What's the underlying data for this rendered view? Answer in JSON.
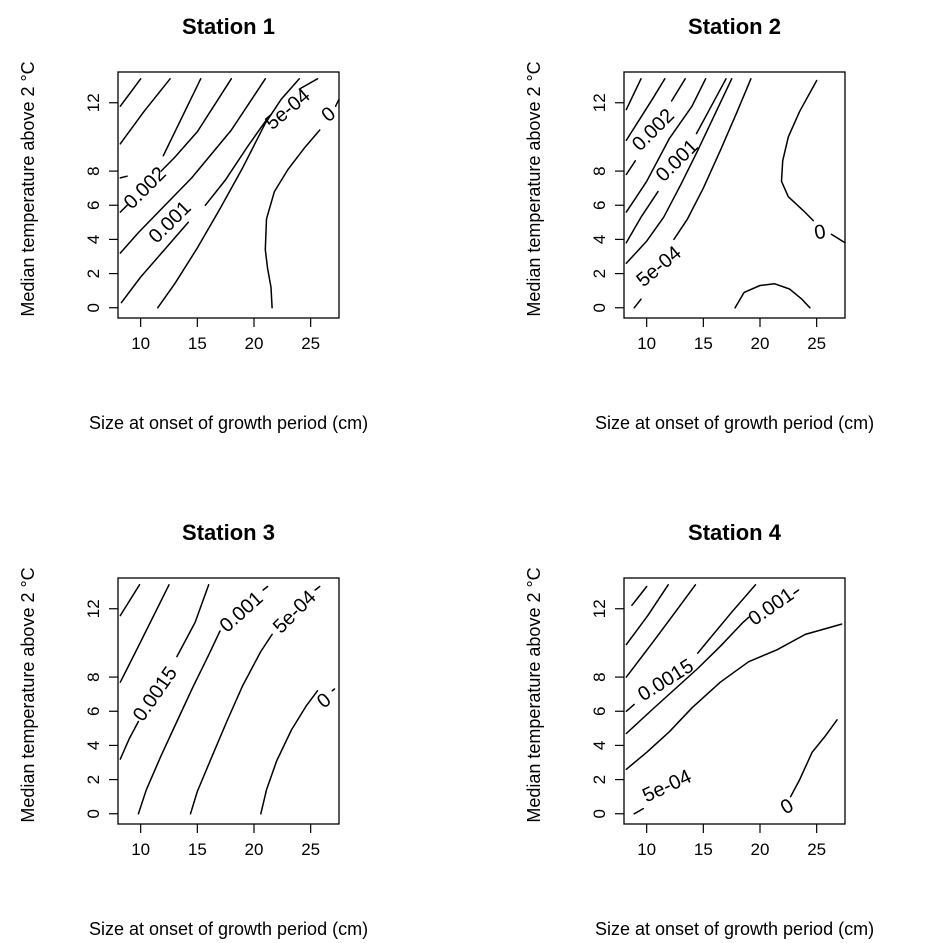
{
  "chart_data": [
    {
      "type": "contour",
      "title": "Station 1",
      "xlabel": "Size at onset of growth period (cm)",
      "ylabel": "Median temperature above 2 °C",
      "xlim": [
        8,
        27.5
      ],
      "ylim": [
        -0.6,
        13.8
      ],
      "xticks": [
        10,
        15,
        20,
        25
      ],
      "yticks": [
        0,
        2,
        4,
        6,
        8,
        12
      ],
      "grid": false,
      "contours": [
        {
          "points": [
            [
              8.2,
              11.8
            ],
            [
              10.0,
              13.4
            ]
          ]
        },
        {
          "points": [
            [
              8.2,
              9.6
            ],
            [
              10.3,
              11.5
            ],
            [
              12.6,
              13.4
            ]
          ]
        },
        {
          "points": [
            [
              8.2,
              7.6
            ],
            [
              8.8,
              7.7
            ]
          ]
        },
        {
          "points": [
            [
              12.0,
              8.9
            ],
            [
              15.3,
              13.4
            ]
          ]
        },
        {
          "label": "0.002",
          "label_at": [
            10.4,
            7.0
          ],
          "label_angle": -45,
          "points": [
            [
              8.2,
              5.6
            ],
            [
              8.8,
              6.0
            ]
          ]
        },
        {
          "points": [
            [
              11.8,
              8.0
            ],
            [
              13.0,
              8.8
            ],
            [
              15.0,
              10.3
            ],
            [
              18.0,
              13.4
            ]
          ]
        },
        {
          "points": [
            [
              8.2,
              3.2
            ],
            [
              9.8,
              4.4
            ],
            [
              12.0,
              5.9
            ],
            [
              14.5,
              7.6
            ],
            [
              18.0,
              10.4
            ],
            [
              21.0,
              13.4
            ]
          ]
        },
        {
          "label": "0.001",
          "label_at": [
            12.6,
            5.0
          ],
          "label_angle": -45
        },
        {
          "points": [
            [
              8.3,
              0.3
            ],
            [
              10.0,
              1.8
            ],
            [
              12.5,
              3.7
            ],
            [
              14.2,
              5.0
            ]
          ]
        },
        {
          "points": [
            [
              15.7,
              6.0
            ],
            [
              17.5,
              7.5
            ],
            [
              19.5,
              9.5
            ],
            [
              21.1,
              11.0
            ]
          ]
        },
        {
          "label": "5e-04",
          "label_at": [
            23.0,
            11.6
          ],
          "label_angle": -40
        },
        {
          "points": [
            [
              24.0,
              12.8
            ],
            [
              25.6,
              13.4
            ]
          ]
        },
        {
          "points": [
            [
              11.5,
              0.0
            ],
            [
              13.0,
              1.4
            ],
            [
              15.0,
              3.5
            ],
            [
              17.0,
              5.8
            ],
            [
              19.0,
              8.2
            ],
            [
              21.0,
              10.8
            ],
            [
              22.4,
              12.2
            ],
            [
              24.0,
              13.4
            ]
          ]
        },
        {
          "points": [
            [
              21.6,
              0.0
            ],
            [
              21.5,
              1.2
            ],
            [
              21.2,
              2.3
            ],
            [
              21.0,
              3.4
            ],
            [
              21.1,
              5.2
            ],
            [
              21.8,
              6.8
            ],
            [
              23.0,
              8.1
            ],
            [
              24.5,
              9.4
            ],
            [
              25.8,
              10.4
            ]
          ]
        },
        {
          "label": "0",
          "label_at": [
            26.6,
            11.3
          ],
          "label_angle": -40
        },
        {
          "points": [
            [
              27.2,
              11.8
            ],
            [
              27.5,
              12.2
            ]
          ]
        }
      ]
    },
    {
      "type": "contour",
      "title": "Station 2",
      "xlabel": "Size at onset of growth period (cm)",
      "ylabel": "Median temperature above 2 °C",
      "xlim": [
        8,
        27.5
      ],
      "ylim": [
        -0.6,
        13.8
      ],
      "xticks": [
        10,
        15,
        20,
        25
      ],
      "yticks": [
        0,
        2,
        4,
        6,
        8,
        12
      ],
      "grid": false,
      "contours": [
        {
          "points": [
            [
              8.2,
              11.6
            ],
            [
              9.5,
              13.4
            ]
          ]
        },
        {
          "points": [
            [
              8.2,
              9.8
            ],
            [
              10.5,
              12.2
            ],
            [
              11.6,
              13.4
            ]
          ]
        },
        {
          "points": [
            [
              8.2,
              7.8
            ],
            [
              9.0,
              8.6
            ]
          ]
        },
        {
          "label": "0.002",
          "label_at": [
            10.6,
            10.4
          ],
          "label_angle": -45
        },
        {
          "points": [
            [
              12.2,
              12.1
            ],
            [
              13.4,
              13.4
            ]
          ]
        },
        {
          "points": [
            [
              8.2,
              5.6
            ],
            [
              10.0,
              7.4
            ],
            [
              12.0,
              9.9
            ],
            [
              14.0,
              11.8
            ],
            [
              15.2,
              13.4
            ]
          ]
        },
        {
          "points": [
            [
              8.2,
              3.8
            ],
            [
              9.5,
              5.3
            ],
            [
              11.0,
              6.8
            ]
          ]
        },
        {
          "label": "0.001",
          "label_at": [
            12.7,
            8.6
          ],
          "label_angle": -45
        },
        {
          "points": [
            [
              14.4,
              10.2
            ],
            [
              15.3,
              11.3
            ],
            [
              17.0,
              13.4
            ]
          ]
        },
        {
          "points": [
            [
              8.2,
              2.6
            ],
            [
              10.0,
              3.9
            ],
            [
              11.5,
              5.3
            ],
            [
              13.0,
              7.2
            ],
            [
              14.5,
              9.2
            ],
            [
              16.0,
              11.3
            ],
            [
              17.5,
              13.4
            ]
          ]
        },
        {
          "points": [
            [
              8.9,
              0.0
            ],
            [
              9.5,
              0.5
            ]
          ]
        },
        {
          "label": "5e-04",
          "label_at": [
            11.1,
            2.4
          ],
          "label_angle": -40
        },
        {
          "points": [
            [
              12.4,
              4.0
            ],
            [
              13.6,
              5.2
            ],
            [
              15.0,
              7.0
            ],
            [
              16.5,
              9.2
            ],
            [
              18.0,
              11.5
            ],
            [
              19.2,
              13.4
            ]
          ]
        },
        {
          "points": [
            [
              25.0,
              13.3
            ],
            [
              23.5,
              11.5
            ],
            [
              22.5,
              10.0
            ],
            [
              22.0,
              8.6
            ],
            [
              21.9,
              7.4
            ],
            [
              22.5,
              6.5
            ],
            [
              23.8,
              5.7
            ],
            [
              24.7,
              5.1
            ]
          ]
        },
        {
          "label": "0",
          "label_at": [
            25.3,
            4.4
          ],
          "label_angle": -10
        },
        {
          "points": [
            [
              26.3,
              4.3
            ],
            [
              27.5,
              3.8
            ]
          ]
        },
        {
          "points": [
            [
              17.8,
              0.0
            ],
            [
              18.6,
              0.9
            ],
            [
              20.0,
              1.3
            ],
            [
              21.3,
              1.4
            ],
            [
              22.6,
              1.1
            ],
            [
              23.7,
              0.5
            ],
            [
              24.4,
              0.0
            ]
          ]
        }
      ]
    },
    {
      "type": "contour",
      "title": "Station 3",
      "xlabel": "Size at onset of growth period (cm)",
      "ylabel": "Median temperature above 2 °C",
      "xlim": [
        8,
        27.5
      ],
      "ylim": [
        -0.6,
        13.8
      ],
      "xticks": [
        10,
        15,
        20,
        25
      ],
      "yticks": [
        0,
        2,
        4,
        6,
        8,
        12
      ],
      "grid": false,
      "contours": [
        {
          "points": [
            [
              8.2,
              11.6
            ],
            [
              9.9,
              13.4
            ]
          ]
        },
        {
          "points": [
            [
              8.2,
              7.7
            ],
            [
              9.8,
              9.8
            ],
            [
              11.3,
              11.8
            ],
            [
              12.5,
              13.4
            ]
          ]
        },
        {
          "points": [
            [
              8.2,
              3.2
            ],
            [
              9.0,
              4.4
            ],
            [
              9.8,
              5.4
            ]
          ]
        },
        {
          "label": "0.0015",
          "label_at": [
            11.3,
            7.0
          ],
          "label_angle": -55
        },
        {
          "points": [
            [
              13.2,
              9.2
            ],
            [
              14.8,
              11.2
            ],
            [
              16.0,
              13.4
            ]
          ]
        },
        {
          "points": [
            [
              9.8,
              0.0
            ],
            [
              10.5,
              1.4
            ],
            [
              11.8,
              3.4
            ],
            [
              13.2,
              5.4
            ],
            [
              14.6,
              7.4
            ],
            [
              16.0,
              9.3
            ],
            [
              17.0,
              10.7
            ]
          ]
        },
        {
          "label": "0.001",
          "label_at": [
            18.9,
            11.8
          ],
          "label_angle": -42
        },
        {
          "points": [
            [
              20.8,
              13.1
            ],
            [
              21.2,
              13.3
            ]
          ]
        },
        {
          "points": [
            [
              14.4,
              0.0
            ],
            [
              15.0,
              1.3
            ],
            [
              16.2,
              3.2
            ],
            [
              17.6,
              5.4
            ],
            [
              19.0,
              7.5
            ],
            [
              20.6,
              9.5
            ],
            [
              21.6,
              10.5
            ]
          ]
        },
        {
          "label": "5e-04",
          "label_at": [
            23.6,
            11.8
          ],
          "label_angle": -45
        },
        {
          "points": [
            [
              25.4,
              13.1
            ],
            [
              25.8,
              13.3
            ]
          ]
        },
        {
          "points": [
            [
              20.6,
              0.0
            ],
            [
              21.1,
              1.4
            ],
            [
              22.0,
              3.1
            ],
            [
              23.3,
              4.9
            ],
            [
              24.6,
              6.3
            ],
            [
              25.6,
              7.2
            ]
          ]
        },
        {
          "label": "0",
          "label_at": [
            26.2,
            6.6
          ],
          "label_angle": -40
        },
        {
          "points": [
            [
              26.9,
              7.2
            ],
            [
              27.1,
              7.3
            ]
          ]
        }
      ]
    },
    {
      "type": "contour",
      "title": "Station 4",
      "xlabel": "Size at onset of growth period (cm)",
      "ylabel": "Median temperature above 2 °C",
      "xlim": [
        8,
        27.5
      ],
      "ylim": [
        -0.6,
        13.8
      ],
      "xticks": [
        10,
        15,
        20,
        25
      ],
      "yticks": [
        0,
        2,
        4,
        6,
        8,
        12
      ],
      "grid": false,
      "contours": [
        {
          "points": [
            [
              8.7,
              12.2
            ],
            [
              10.0,
              13.3
            ]
          ]
        },
        {
          "points": [
            [
              8.2,
              9.9
            ],
            [
              10.1,
              11.6
            ],
            [
              11.9,
              13.4
            ]
          ]
        },
        {
          "points": [
            [
              8.2,
              8.0
            ],
            [
              10.5,
              10.0
            ],
            [
              12.3,
              11.6
            ],
            [
              14.3,
              13.4
            ]
          ]
        },
        {
          "points": [
            [
              8.2,
              6.0
            ],
            [
              8.9,
              6.4
            ]
          ]
        },
        {
          "label": "0.0015",
          "label_at": [
            11.7,
            7.8
          ],
          "label_angle": -32
        },
        {
          "points": [
            [
              14.5,
              9.4
            ],
            [
              15.5,
              10.2
            ],
            [
              17.5,
              11.8
            ],
            [
              19.6,
              13.4
            ]
          ]
        },
        {
          "points": [
            [
              8.2,
              4.7
            ],
            [
              10.5,
              6.1
            ],
            [
              12.5,
              7.3
            ],
            [
              14.5,
              8.5
            ],
            [
              16.5,
              9.8
            ],
            [
              18.5,
              11.2
            ],
            [
              19.0,
              11.5
            ]
          ]
        },
        {
          "label": "0.001",
          "label_at": [
            21.0,
            12.1
          ],
          "label_angle": -35
        },
        {
          "points": [
            [
              23.0,
              12.9
            ],
            [
              23.4,
              13.1
            ]
          ]
        },
        {
          "points": [
            [
              8.2,
              2.6
            ],
            [
              10.0,
              3.6
            ],
            [
              12.0,
              4.8
            ],
            [
              14.0,
              6.2
            ],
            [
              16.5,
              7.7
            ],
            [
              19.0,
              8.9
            ],
            [
              21.5,
              9.6
            ],
            [
              24.0,
              10.5
            ],
            [
              27.2,
              11.1
            ]
          ]
        },
        {
          "points": [
            [
              8.9,
              0.0
            ],
            [
              9.7,
              0.3
            ]
          ]
        },
        {
          "label": "5e-04",
          "label_at": [
            11.8,
            1.6
          ],
          "label_angle": -25
        },
        {
          "points": [
            [
              22.7,
              1.0
            ],
            [
              23.5,
              2.0
            ],
            [
              24.6,
              3.6
            ],
            [
              25.7,
              4.5
            ],
            [
              26.8,
              5.5
            ]
          ]
        },
        {
          "label": "0",
          "label_at": [
            22.4,
            0.4
          ],
          "label_angle": -30
        }
      ]
    }
  ]
}
